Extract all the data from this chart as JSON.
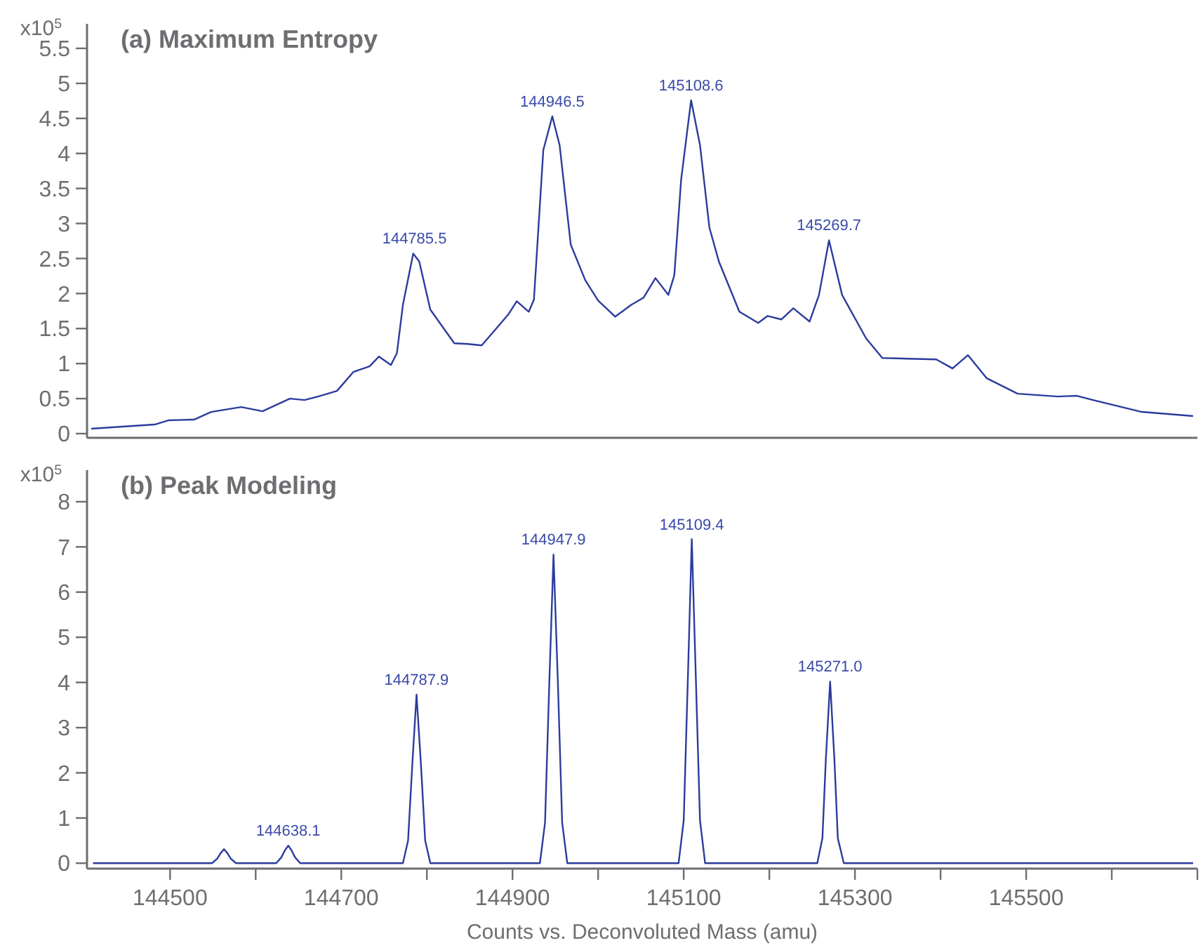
{
  "chart_data": [
    {
      "type": "line",
      "title": "(a) Maximum Entropy",
      "ylabel": "x10$^{5}$",
      "xlim": [
        144403,
        145700
      ],
      "ylim": [
        -0.06,
        5.85
      ],
      "yticks": [
        0,
        0.5,
        1,
        1.5,
        2,
        2.5,
        3,
        3.5,
        4,
        4.5,
        5,
        5.5
      ],
      "tick_labels": "y",
      "grid": false,
      "series": [
        {
          "color": "#2b3c9e",
          "x": [
            144408,
            144482,
            144498,
            144528,
            144548,
            144583,
            144608,
            144640,
            144657,
            144673,
            144695,
            144714,
            144733,
            144744,
            144758,
            144765,
            144772,
            144784,
            144791,
            144804,
            144832,
            144848,
            144864,
            144881,
            144895,
            144905,
            144919,
            144925,
            144936,
            144946.5,
            144955,
            144968,
            144985,
            145000,
            145020,
            145039,
            145053,
            145067,
            145082,
            145089,
            145097,
            145108.6,
            145119,
            145130,
            145141,
            145165,
            145187,
            145198,
            145214,
            145228,
            145247,
            145258,
            145269.7,
            145285,
            145313,
            145332,
            145362,
            145395,
            145414,
            145432,
            145454,
            145490,
            145537,
            145559,
            145578,
            145635,
            145695
          ],
          "values": [
            0.07,
            0.13,
            0.19,
            0.2,
            0.31,
            0.38,
            0.32,
            0.5,
            0.48,
            0.53,
            0.61,
            0.88,
            0.96,
            1.1,
            0.98,
            1.15,
            1.84,
            2.57,
            2.46,
            1.77,
            1.29,
            1.28,
            1.26,
            1.5,
            1.7,
            1.89,
            1.74,
            1.91,
            4.05,
            4.53,
            4.12,
            2.7,
            2.19,
            1.9,
            1.67,
            1.84,
            1.94,
            2.22,
            1.98,
            2.26,
            3.63,
            4.76,
            4.12,
            2.94,
            2.46,
            1.74,
            1.58,
            1.68,
            1.63,
            1.79,
            1.6,
            1.98,
            2.76,
            1.98,
            1.36,
            1.08,
            1.07,
            1.06,
            0.93,
            1.12,
            0.79,
            0.57,
            0.53,
            0.54,
            0.48,
            0.31,
            0.25
          ]
        }
      ],
      "annotations": [
        {
          "text": "144785.5",
          "x": 144785.5,
          "y": 2.57
        },
        {
          "text": "144946.5",
          "x": 144946.5,
          "y": 4.53
        },
        {
          "text": "145108.6",
          "x": 145108.6,
          "y": 4.76
        },
        {
          "text": "145269.7",
          "x": 145269.7,
          "y": 2.76
        }
      ]
    },
    {
      "type": "line",
      "title": "(b) Peak Modeling",
      "ylabel": "x10$^{5}$",
      "xlabel": "Counts vs. Deconvoluted Mass (amu)",
      "xlim": [
        144403,
        145700
      ],
      "ylim": [
        -0.12,
        8.7
      ],
      "xticks": [
        144500,
        {
          "value": 144600,
          "label": null
        },
        144700,
        {
          "value": 144800,
          "label": null
        },
        144900,
        {
          "value": 145000,
          "label": null
        },
        145100,
        {
          "value": 145200,
          "label": null
        },
        145300,
        {
          "value": 145400,
          "label": null
        },
        145500,
        {
          "value": 145600,
          "label": null
        },
        {
          "value": 145700,
          "label": null
        }
      ],
      "yticks": [
        0,
        1,
        2,
        3,
        4,
        5,
        6,
        7,
        8
      ],
      "grid": false,
      "series": [
        {
          "color": "#2b3c9e",
          "x": [
            144410,
            144549,
            144555,
            144559,
            144563,
            144567,
            144571,
            144577,
            144624,
            144630,
            144634,
            144638.1,
            144642,
            144646,
            144652,
            144772,
            144778,
            144783,
            144787.9,
            144793,
            144798,
            144804,
            144932,
            144938,
            144943,
            144947.9,
            144953,
            144958,
            144964,
            145094,
            145100,
            145105,
            145109.4,
            145114,
            145119,
            145125,
            145256,
            145262,
            145266,
            145271.0,
            145276,
            145280,
            145287,
            145695
          ],
          "values": [
            0,
            0,
            0.1,
            0.22,
            0.31,
            0.22,
            0.1,
            0,
            0,
            0.13,
            0.28,
            0.39,
            0.28,
            0.13,
            0,
            0,
            0.5,
            2.2,
            3.73,
            2.2,
            0.5,
            0,
            0,
            0.9,
            4.0,
            6.83,
            4.0,
            0.9,
            0,
            0,
            0.95,
            4.2,
            7.17,
            4.2,
            0.95,
            0,
            0,
            0.55,
            2.3,
            4.02,
            2.3,
            0.55,
            0,
            0
          ]
        }
      ],
      "annotations": [
        {
          "text": "144638.1",
          "x": 144638.1,
          "y": 0.39
        },
        {
          "text": "144787.9",
          "x": 144787.9,
          "y": 3.73
        },
        {
          "text": "144947.9",
          "x": 144947.9,
          "y": 6.83
        },
        {
          "text": "145109.4",
          "x": 145109.4,
          "y": 7.17
        },
        {
          "text": "145271.0",
          "x": 145271.0,
          "y": 4.02
        }
      ]
    }
  ]
}
